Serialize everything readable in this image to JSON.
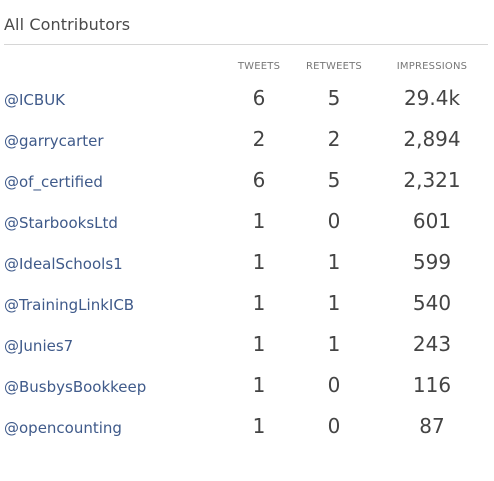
{
  "panel": {
    "title": "All Contributors"
  },
  "columns": {
    "tweets": "TWEETS",
    "retweets": "RETWEETS",
    "impressions": "IMPRESSIONS"
  },
  "rows": [
    {
      "handle": "@ICBUK",
      "tweets": "6",
      "retweets": "5",
      "impressions": "29.4k"
    },
    {
      "handle": "@garrycarter",
      "tweets": "2",
      "retweets": "2",
      "impressions": "2,894"
    },
    {
      "handle": "@of_certified",
      "tweets": "6",
      "retweets": "5",
      "impressions": "2,321"
    },
    {
      "handle": "@StarbooksLtd",
      "tweets": "1",
      "retweets": "0",
      "impressions": "601"
    },
    {
      "handle": "@IdealSchools1",
      "tweets": "1",
      "retweets": "1",
      "impressions": "599"
    },
    {
      "handle": "@TrainingLinkICB",
      "tweets": "1",
      "retweets": "1",
      "impressions": "540"
    },
    {
      "handle": "@Junies7",
      "tweets": "1",
      "retweets": "1",
      "impressions": "243"
    },
    {
      "handle": "@BusbysBookkeep",
      "tweets": "1",
      "retweets": "0",
      "impressions": "116"
    },
    {
      "handle": "@opencounting",
      "tweets": "1",
      "retweets": "0",
      "impressions": "87"
    }
  ],
  "colors": {
    "handle": "#3f5a8a",
    "text": "#444444",
    "header": "#777777",
    "divider": "#d6d6d6"
  }
}
